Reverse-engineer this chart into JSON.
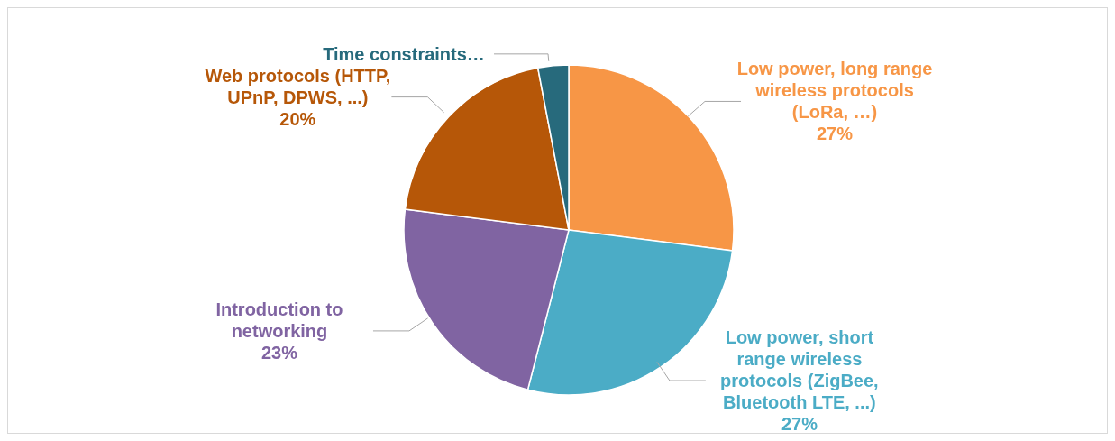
{
  "chart_data": {
    "type": "pie",
    "categories": [
      "Low power, long range wireless protocols (LoRa, …)",
      "Low power, short range wireless protocols (ZigBee, Bluetooth LTE, ...)",
      "Introduction to networking",
      "Web protocols (HTTP, UPnP, DPWS, ...)",
      "Time constraints…"
    ],
    "values": [
      27,
      27,
      23,
      20,
      3
    ],
    "colors": [
      "#f79646",
      "#4bacc6",
      "#8064a2",
      "#b65708",
      "#276a7c"
    ],
    "value_labels": [
      "27%",
      "27%",
      "23%",
      "20%",
      null
    ],
    "legend": false
  }
}
